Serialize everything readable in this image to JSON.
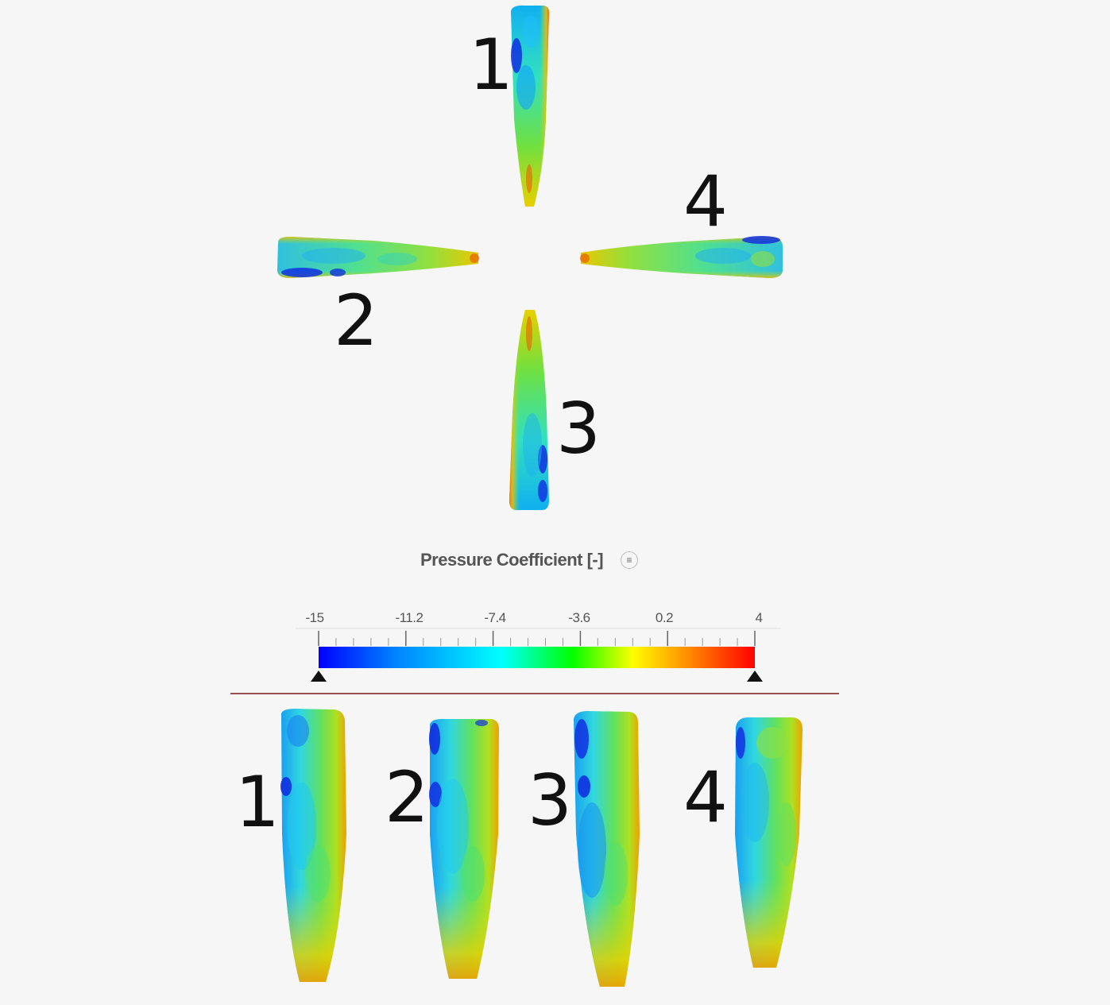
{
  "top_view": {
    "blade_labels": [
      "1",
      "2",
      "3",
      "4"
    ]
  },
  "side_view": {
    "blade_labels": [
      "1",
      "2",
      "3",
      "4"
    ]
  },
  "legend": {
    "title": "Pressure Coefficient [-]",
    "min": -15,
    "max": 4,
    "tick_labels": [
      "-15",
      "-11.2",
      "-7.4",
      "-3.6",
      "0.2",
      "4"
    ],
    "colormap": [
      "#0000ff",
      "#0080ff",
      "#00ffff",
      "#00ff00",
      "#ffff00",
      "#ff8000",
      "#ff0000"
    ]
  },
  "colors": {
    "divider": "#7a1a1a",
    "background": "#f6f6f6"
  }
}
